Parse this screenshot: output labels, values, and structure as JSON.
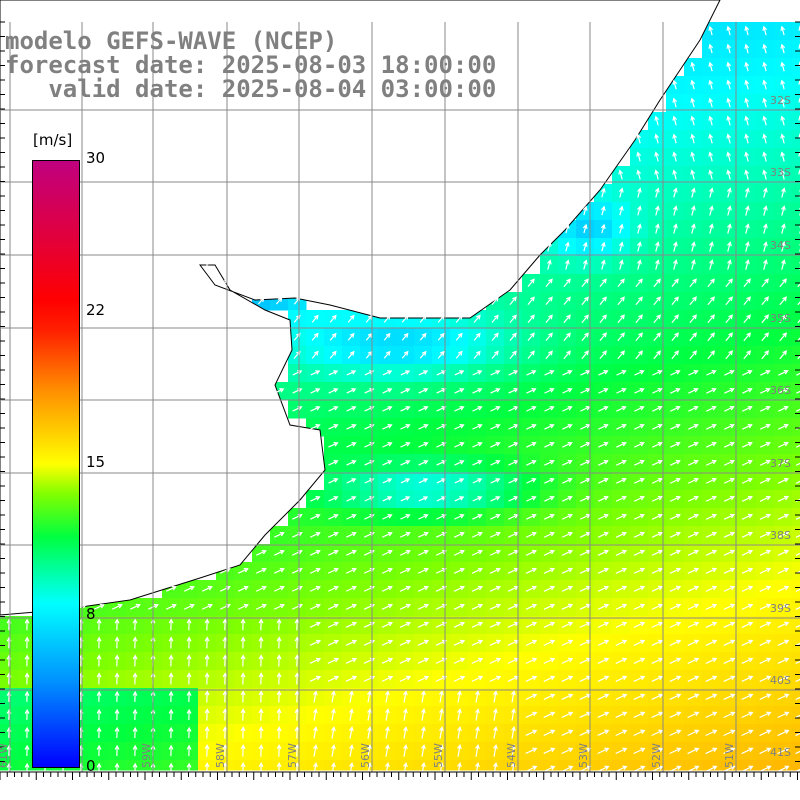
{
  "title": {
    "line1": "modelo GEFS-WAVE (NCEP)",
    "line2": "forecast date: 2025-08-03 18:00:00",
    "line3": "   valid date: 2025-08-04 03:00:00"
  },
  "colorbar": {
    "unit": "[m/s]",
    "labels": [
      "30",
      "22",
      "15",
      "8",
      "0"
    ],
    "stops": [
      "#0000ff",
      "#0090ff",
      "#00ffff",
      "#00ff40",
      "#ffff00",
      "#ff9000",
      "#ff0000",
      "#c0007f"
    ]
  },
  "axes": {
    "lon_labels": [
      "61W",
      "60W",
      "59W",
      "58W",
      "57W",
      "56W",
      "55W",
      "54W",
      "53W",
      "52W",
      "51W"
    ],
    "lat_labels": [
      "32S",
      "33S",
      "34S",
      "35S",
      "36S",
      "37S",
      "38S",
      "39S",
      "40S",
      "41S"
    ]
  },
  "colors": {
    "land": "#ffffff",
    "grid": "#888888",
    "label": "#808080"
  }
}
